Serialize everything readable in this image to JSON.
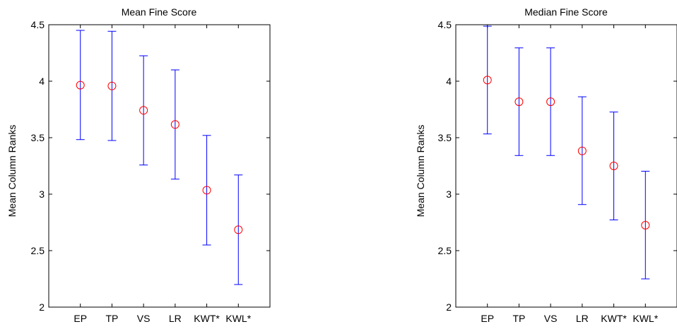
{
  "chart_data": [
    {
      "type": "scatter",
      "title": "Mean Fine Score",
      "xlabel": "",
      "ylabel": "Mean Column Ranks",
      "categories": [
        "EP",
        "TP",
        "VS",
        "LR",
        "KWT*",
        "KWL*"
      ],
      "values": [
        3.965,
        3.958,
        3.742,
        3.617,
        3.035,
        2.685
      ],
      "lower": [
        3.483,
        3.475,
        3.258,
        3.133,
        2.55,
        2.2
      ],
      "upper": [
        4.45,
        4.442,
        4.225,
        4.1,
        3.52,
        3.17
      ],
      "ylim": [
        2,
        4.5
      ],
      "yticks": [
        2,
        2.5,
        3,
        3.5,
        4,
        4.5
      ],
      "ytick_labels": [
        "2",
        "2.5",
        "3",
        "3.5",
        "4",
        "4.5"
      ],
      "grid": false,
      "marker_color": "#ff0000",
      "errorbar_color": "#0000ff"
    },
    {
      "type": "scatter",
      "title": "Median Fine Score",
      "xlabel": "",
      "ylabel": "Mean Column Ranks",
      "categories": [
        "EP",
        "TP",
        "VS",
        "LR",
        "KWT*",
        "KWL*"
      ],
      "values": [
        4.01,
        3.818,
        3.818,
        3.383,
        3.25,
        2.725
      ],
      "lower": [
        3.533,
        3.342,
        3.342,
        2.908,
        2.772,
        2.25
      ],
      "upper": [
        4.487,
        4.295,
        4.295,
        3.862,
        3.727,
        3.203
      ],
      "ylim": [
        2,
        4.5
      ],
      "yticks": [
        2,
        2.5,
        3,
        3.5,
        4,
        4.5
      ],
      "ytick_labels": [
        "2",
        "2.5",
        "3",
        "3.5",
        "4",
        "4.5"
      ],
      "grid": false,
      "marker_color": "#ff0000",
      "errorbar_color": "#0000ff"
    }
  ]
}
